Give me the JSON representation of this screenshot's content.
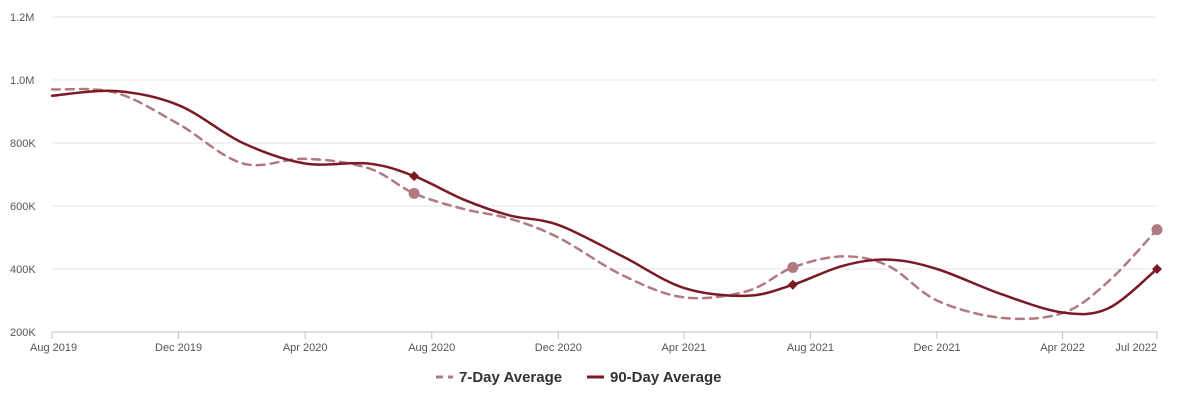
{
  "chart_data": {
    "type": "line",
    "x_dates": [
      "2019-08-01",
      "2019-10-01",
      "2019-12-01",
      "2020-02-01",
      "2020-04-01",
      "2020-06-01",
      "2020-07-15",
      "2020-09-01",
      "2020-10-15",
      "2020-12-01",
      "2021-02-01",
      "2021-04-01",
      "2021-06-01",
      "2021-07-15",
      "2021-09-01",
      "2021-10-15",
      "2021-12-01",
      "2022-02-01",
      "2022-04-01",
      "2022-05-15",
      "2022-07-01"
    ],
    "x_ticks": [
      {
        "label": "Aug 2019",
        "date": "2019-08-01"
      },
      {
        "label": "Dec 2019",
        "date": "2019-12-01"
      },
      {
        "label": "Apr 2020",
        "date": "2020-04-01"
      },
      {
        "label": "Aug 2020",
        "date": "2020-08-01"
      },
      {
        "label": "Dec 2020",
        "date": "2020-12-01"
      },
      {
        "label": "Apr 2021",
        "date": "2021-04-01"
      },
      {
        "label": "Aug 2021",
        "date": "2021-08-01"
      },
      {
        "label": "Dec 2021",
        "date": "2021-12-01"
      },
      {
        "label": "Apr 2022",
        "date": "2022-04-01"
      },
      {
        "label": "Jul 2022",
        "date": "2022-07-01"
      }
    ],
    "y_ticks": [
      {
        "label": "200K",
        "value": 200000
      },
      {
        "label": "400K",
        "value": 400000
      },
      {
        "label": "600K",
        "value": 600000
      },
      {
        "label": "800K",
        "value": 800000
      },
      {
        "label": "1.0M",
        "value": 1000000
      },
      {
        "label": "1.2M",
        "value": 1200000
      }
    ],
    "ylim": [
      200000,
      1200000
    ],
    "grid": "horizontal",
    "legend_position": "bottom-center",
    "series": [
      {
        "name": "7-Day Average",
        "color": "#b07a80",
        "style": "dashed",
        "values": [
          970000,
          960000,
          860000,
          735000,
          750000,
          720000,
          640000,
          590000,
          560000,
          500000,
          380000,
          310000,
          330000,
          405000,
          440000,
          410000,
          300000,
          245000,
          260000,
          360000,
          525000
        ],
        "markers": [
          {
            "date": "2020-07-15",
            "value": 640000,
            "shape": "circle"
          },
          {
            "date": "2021-07-15",
            "value": 405000,
            "shape": "circle"
          },
          {
            "date": "2022-07-01",
            "value": 525000,
            "shape": "circle"
          }
        ]
      },
      {
        "name": "90-Day Average",
        "color": "#7a1a24",
        "style": "solid",
        "values": [
          950000,
          965000,
          920000,
          800000,
          735000,
          735000,
          695000,
          620000,
          570000,
          540000,
          440000,
          340000,
          315000,
          350000,
          410000,
          430000,
          400000,
          320000,
          262000,
          275000,
          400000
        ],
        "markers": [
          {
            "date": "2020-07-15",
            "value": 695000,
            "shape": "diamond"
          },
          {
            "date": "2021-07-15",
            "value": 350000,
            "shape": "diamond"
          },
          {
            "date": "2022-07-01",
            "value": 400000,
            "shape": "diamond"
          }
        ]
      }
    ]
  }
}
